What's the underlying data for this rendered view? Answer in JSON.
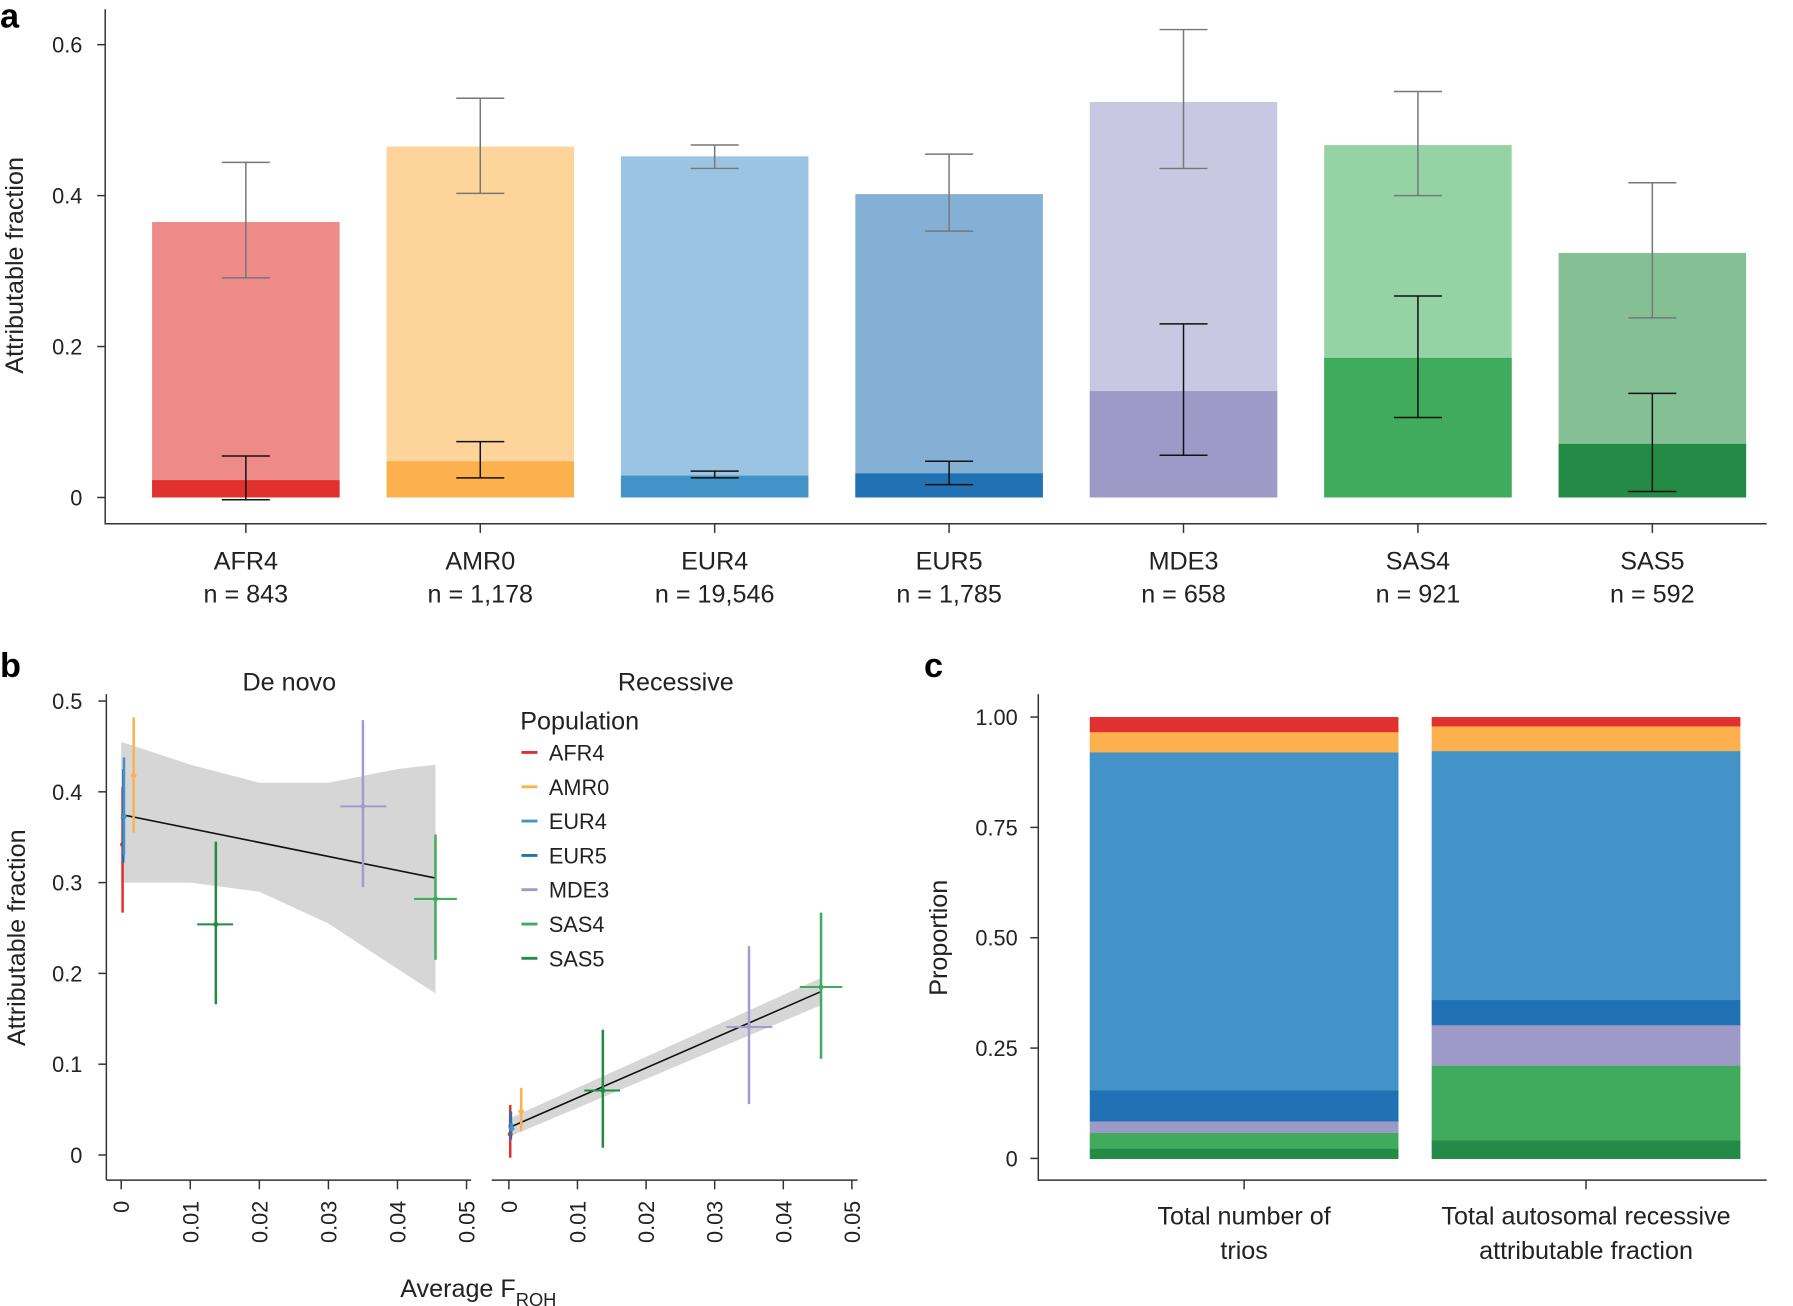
{
  "panels": {
    "a": "a",
    "b": "b",
    "c": "c"
  },
  "colors": {
    "AFR4": {
      "light": "#ee8a87",
      "dark": "#e0312f"
    },
    "AMR0": {
      "light": "#fdd59b",
      "dark": "#fdb14e"
    },
    "EUR4": {
      "light": "#9bc4e2",
      "dark": "#4393c8"
    },
    "EUR5": {
      "light": "#84b0d6",
      "dark": "#2171b5"
    },
    "MDE3": {
      "light": "#c9c7e1",
      "dark": "#9e9ac8"
    },
    "SAS4": {
      "light": "#96d3a4",
      "dark": "#41ab5d"
    },
    "SAS5": {
      "light": "#85c095",
      "dark": "#238b45"
    }
  },
  "chart_data": [
    {
      "type": "bar",
      "panel": "a",
      "ylabel": "Attributable fraction",
      "ylim": [
        0,
        0.65
      ],
      "yticks": [
        "0",
        "0.2",
        "0.4",
        "0.6"
      ],
      "categories": [
        "AFR4",
        "AMR0",
        "EUR4",
        "EUR5",
        "MDE3",
        "SAS4",
        "SAS5"
      ],
      "n_labels": [
        "n = 843",
        "n = 1,178",
        "n = 19,546",
        "n = 1,785",
        "n = 658",
        "n = 921",
        "n = 592"
      ],
      "series": [
        {
          "values": [
            0.365,
            0.465,
            0.452,
            0.402,
            0.524,
            0.467,
            0.324
          ],
          "err_low": [
            0.291,
            0.403,
            0.436,
            0.353,
            0.436,
            0.4,
            0.238
          ],
          "err_high": [
            0.444,
            0.529,
            0.467,
            0.455,
            0.62,
            0.538,
            0.417
          ]
        },
        {
          "values": [
            0.023,
            0.048,
            0.029,
            0.032,
            0.141,
            0.185,
            0.071
          ],
          "err_low": [
            -0.003,
            0.026,
            0.026,
            0.017,
            0.056,
            0.106,
            0.008
          ],
          "err_high": [
            0.055,
            0.074,
            0.035,
            0.048,
            0.23,
            0.267,
            0.138
          ]
        }
      ]
    },
    {
      "type": "scatter",
      "panel": "b",
      "xlabel": "Average F",
      "xlabel_sub": "ROH",
      "ylabel": "Attributable fraction",
      "xlim": [
        0,
        0.05
      ],
      "ylim": [
        0,
        0.5
      ],
      "xticks": [
        "0",
        "0.01",
        "0.02",
        "0.03",
        "0.04",
        "0.05"
      ],
      "yticks": [
        "0",
        "0.1",
        "0.2",
        "0.3",
        "0.4",
        "0.5"
      ],
      "legend_title": "Population",
      "legend": [
        "AFR4",
        "AMR0",
        "EUR4",
        "EUR5",
        "MDE3",
        "SAS4",
        "SAS5"
      ],
      "facets": [
        {
          "title": "De novo",
          "points": [
            {
              "pop": "AFR4",
              "x": 0.0002,
              "y": 0.342,
              "ylo": 0.267,
              "yhi": 0.405,
              "xlo": 0.0,
              "xhi": 0.0004
            },
            {
              "pop": "EUR5",
              "x": 0.0003,
              "y": 0.372,
              "ylo": 0.322,
              "yhi": 0.425,
              "xlo": 0.0,
              "xhi": 0.0006
            },
            {
              "pop": "EUR4",
              "x": 0.0004,
              "y": 0.373,
              "ylo": 0.33,
              "yhi": 0.438,
              "xlo": 0.0,
              "xhi": 0.0008
            },
            {
              "pop": "AMR0",
              "x": 0.0018,
              "y": 0.418,
              "ylo": 0.355,
              "yhi": 0.482,
              "xlo": 0.0014,
              "xhi": 0.0022
            },
            {
              "pop": "SAS5",
              "x": 0.0137,
              "y": 0.254,
              "ylo": 0.166,
              "yhi": 0.345,
              "xlo": 0.011,
              "xhi": 0.0162
            },
            {
              "pop": "MDE3",
              "x": 0.035,
              "y": 0.384,
              "ylo": 0.295,
              "yhi": 0.479,
              "xlo": 0.0317,
              "xhi": 0.0384
            },
            {
              "pop": "SAS4",
              "x": 0.0455,
              "y": 0.282,
              "ylo": 0.215,
              "yhi": 0.353,
              "xlo": 0.0424,
              "xhi": 0.0486
            }
          ],
          "fit": {
            "x": [
              0,
              0.0455
            ],
            "y": [
              0.375,
              0.305
            ]
          },
          "band": {
            "x": [
              0,
              0.01,
              0.02,
              0.03,
              0.04,
              0.0455
            ],
            "upper": [
              0.455,
              0.43,
              0.41,
              0.41,
              0.425,
              0.43
            ],
            "lower": [
              0.3,
              0.3,
              0.29,
              0.255,
              0.205,
              0.178
            ]
          }
        },
        {
          "title": "Recessive",
          "points": [
            {
              "pop": "AFR4",
              "x": 0.0002,
              "y": 0.023,
              "ylo": -0.003,
              "yhi": 0.055,
              "xlo": 0.0,
              "xhi": 0.0004
            },
            {
              "pop": "EUR5",
              "x": 0.0003,
              "y": 0.032,
              "ylo": 0.017,
              "yhi": 0.048,
              "xlo": 0.0,
              "xhi": 0.0006
            },
            {
              "pop": "EUR4",
              "x": 0.0004,
              "y": 0.029,
              "ylo": 0.026,
              "yhi": 0.035,
              "xlo": 0.0,
              "xhi": 0.0008
            },
            {
              "pop": "AMR0",
              "x": 0.0018,
              "y": 0.048,
              "ylo": 0.026,
              "yhi": 0.074,
              "xlo": 0.0014,
              "xhi": 0.0022
            },
            {
              "pop": "SAS5",
              "x": 0.0137,
              "y": 0.071,
              "ylo": 0.008,
              "yhi": 0.138,
              "xlo": 0.011,
              "xhi": 0.0162
            },
            {
              "pop": "MDE3",
              "x": 0.035,
              "y": 0.141,
              "ylo": 0.056,
              "yhi": 0.23,
              "xlo": 0.0317,
              "xhi": 0.0384
            },
            {
              "pop": "SAS4",
              "x": 0.0455,
              "y": 0.185,
              "ylo": 0.106,
              "yhi": 0.267,
              "xlo": 0.0424,
              "xhi": 0.0486
            }
          ],
          "fit": {
            "x": [
              0,
              0.0455
            ],
            "y": [
              0.03,
              0.18
            ]
          },
          "band": {
            "x": [
              0,
              0.0455
            ],
            "upper": [
              0.04,
              0.195
            ],
            "lower": [
              0.02,
              0.165
            ]
          }
        }
      ]
    },
    {
      "type": "bar",
      "panel": "c",
      "stacked": true,
      "ylabel": "Proportion",
      "ylim": [
        0,
        1
      ],
      "yticks": [
        "0",
        "0.25",
        "0.50",
        "0.75",
        "1.00"
      ],
      "categories": [
        [
          "Total number of",
          "trios"
        ],
        [
          "Total autosomal recessive",
          "attributable fraction"
        ]
      ],
      "stack_order": [
        "SAS5",
        "SAS4",
        "MDE3",
        "EUR5",
        "EUR4",
        "AMR0",
        "AFR4"
      ],
      "series": [
        {
          "name": "SAS5",
          "values": [
            0.023,
            0.042
          ]
        },
        {
          "name": "SAS4",
          "values": [
            0.036,
            0.169
          ]
        },
        {
          "name": "MDE3",
          "values": [
            0.026,
            0.092
          ]
        },
        {
          "name": "EUR5",
          "values": [
            0.07,
            0.057
          ]
        },
        {
          "name": "EUR4",
          "values": [
            0.766,
            0.564
          ]
        },
        {
          "name": "AMR0",
          "values": [
            0.046,
            0.056
          ]
        },
        {
          "name": "AFR4",
          "values": [
            0.033,
            0.02
          ]
        }
      ]
    }
  ]
}
